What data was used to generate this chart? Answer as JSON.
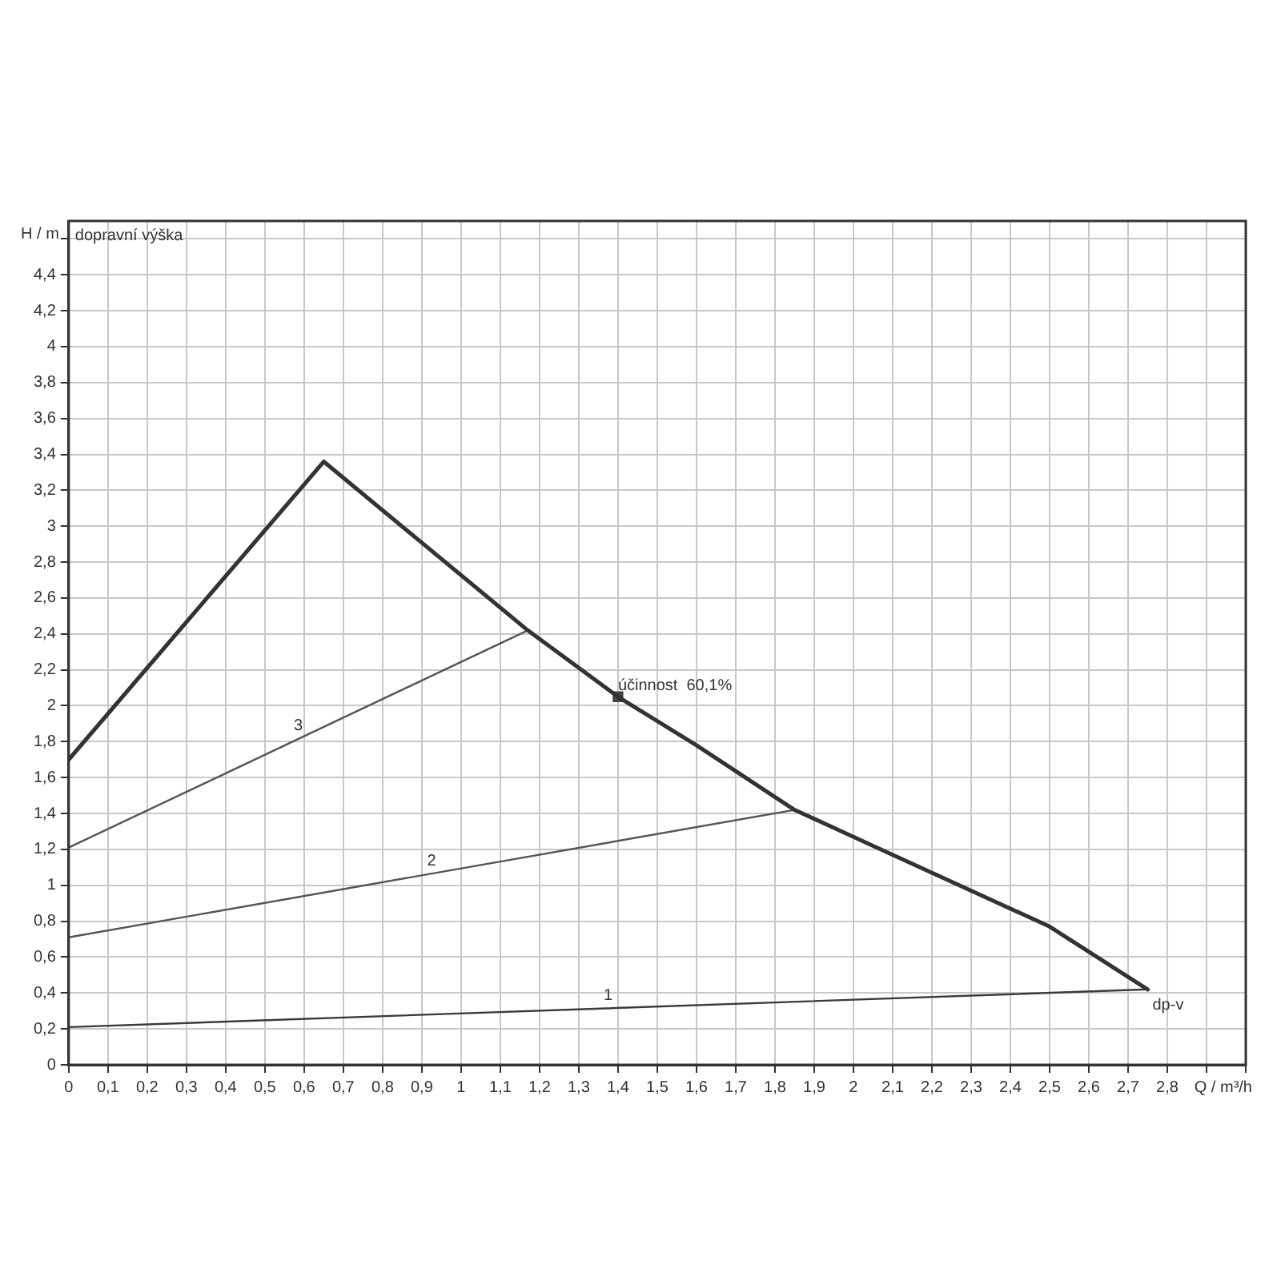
{
  "chart_data": {
    "type": "line",
    "xlabel": "Q / m³/h",
    "ylabel": "H / m",
    "annotations": [
      "dopravní výška",
      {
        "text": "účinnost  60,1%",
        "x": 1.4,
        "y": 2.05
      },
      {
        "text": "dp-v",
        "x": 2.75,
        "y": 0.42
      }
    ],
    "series": [
      {
        "color": "#333333",
        "x": [
          0,
          0.65,
          1.17,
          1.4,
          1.6,
          1.85,
          2.05,
          2.3,
          2.5,
          2.75
        ],
        "values": [
          1.7,
          3.36,
          2.42,
          2.05,
          1.78,
          1.42,
          1.22,
          0.97,
          0.77,
          0.42
        ]
      },
      {
        "name": "1",
        "color": "#3a3a3a",
        "x": [
          0,
          2.75
        ],
        "values": [
          0.21,
          0.42
        ]
      },
      {
        "name": "2",
        "color": "#555555",
        "x": [
          0,
          1.85
        ],
        "values": [
          0.71,
          1.42
        ]
      },
      {
        "name": "3",
        "color": "#555555",
        "x": [
          0,
          1.17
        ],
        "values": [
          1.21,
          2.42
        ]
      },
      {
        "type": "scatter",
        "marker": "square",
        "color": "#444444",
        "x": [
          1.4
        ],
        "values": [
          2.05
        ]
      }
    ],
    "xlim": [
      0,
      3
    ],
    "xticks": [
      0,
      {
        "value": 0.1,
        "label": "0,1"
      },
      {
        "value": 0.2,
        "label": "0,2"
      },
      {
        "value": 0.3,
        "label": "0,3"
      },
      {
        "value": 0.4,
        "label": "0,4"
      },
      {
        "value": 0.5,
        "label": "0,5"
      },
      {
        "value": 0.6,
        "label": "0,6"
      },
      {
        "value": 0.7,
        "label": "0,7"
      },
      {
        "value": 0.8,
        "label": "0,8"
      },
      {
        "value": 0.9,
        "label": "0,9"
      },
      1,
      {
        "value": 1.1,
        "label": "1,1"
      },
      {
        "value": 1.2,
        "label": "1,2"
      },
      {
        "value": 1.3,
        "label": "1,3"
      },
      {
        "value": 1.4,
        "label": "1,4"
      },
      {
        "value": 1.5,
        "label": "1,5"
      },
      {
        "value": 1.6,
        "label": "1,6"
      },
      {
        "value": 1.7,
        "label": "1,7"
      },
      {
        "value": 1.8,
        "label": "1,8"
      },
      {
        "value": 1.9,
        "label": "1,9"
      },
      2,
      {
        "value": 2.1,
        "label": "2,1"
      },
      {
        "value": 2.2,
        "label": "2,2"
      },
      {
        "value": 2.3,
        "label": "2,3"
      },
      {
        "value": 2.4,
        "label": "2,4"
      },
      {
        "value": 2.5,
        "label": "2,5"
      },
      {
        "value": 2.6,
        "label": "2,6"
      },
      {
        "value": 2.7,
        "label": "2,7"
      },
      {
        "value": 2.8,
        "label": "2,8"
      },
      {
        "value": 2.9,
        "label": null
      },
      {
        "value": 3,
        "label": null
      }
    ],
    "ylim": [
      0,
      4.7
    ],
    "yticks": [
      0,
      {
        "value": 0.2,
        "label": "0,2"
      },
      {
        "value": 0.4,
        "label": "0,4"
      },
      {
        "value": 0.6,
        "label": "0,6"
      },
      {
        "value": 0.8,
        "label": "0,8"
      },
      1,
      {
        "value": 1.2,
        "label": "1,2"
      },
      {
        "value": 1.4,
        "label": "1,4"
      },
      {
        "value": 1.6,
        "label": "1,6"
      },
      {
        "value": 1.8,
        "label": "1,8"
      },
      2,
      {
        "value": 2.2,
        "label": "2,2"
      },
      {
        "value": 2.4,
        "label": "2,4"
      },
      {
        "value": 2.6,
        "label": "2,6"
      },
      {
        "value": 2.8,
        "label": "2,8"
      },
      3,
      {
        "value": 3.2,
        "label": "3,2"
      },
      {
        "value": 3.4,
        "label": "3,4"
      },
      {
        "value": 3.6,
        "label": "3,6"
      },
      {
        "value": 3.8,
        "label": "3,8"
      },
      4,
      {
        "value": 4.2,
        "label": "4,2"
      },
      {
        "value": 4.4,
        "label": "4,4"
      },
      {
        "value": 4.6,
        "label": null
      }
    ],
    "grid": true,
    "legend": false,
    "marker": "none",
    "line_style": "solid"
  }
}
